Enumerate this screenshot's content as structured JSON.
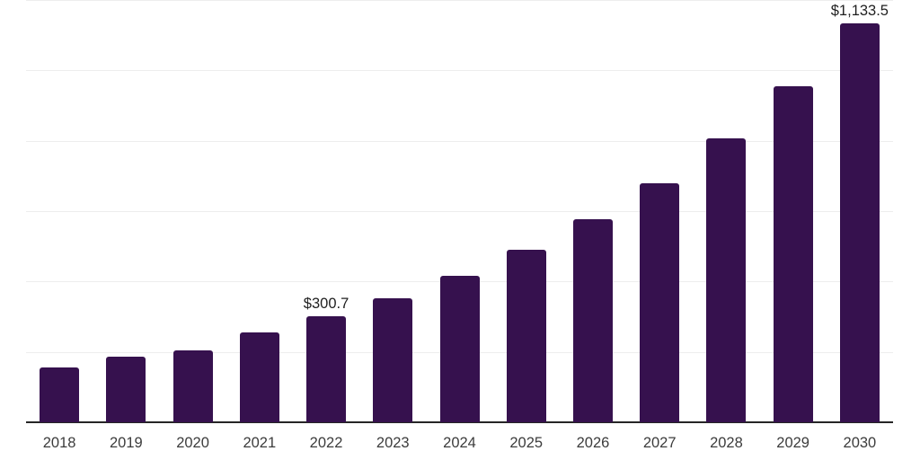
{
  "chart_data": {
    "type": "bar",
    "title": "",
    "xlabel": "",
    "ylabel": "",
    "categories": [
      "2018",
      "2019",
      "2020",
      "2021",
      "2022",
      "2023",
      "2024",
      "2025",
      "2026",
      "2027",
      "2028",
      "2029",
      "2030"
    ],
    "values": [
      156.7,
      185.9,
      203.8,
      254.9,
      300.7,
      352.9,
      415.0,
      490.0,
      577.0,
      680.0,
      807.0,
      954.5,
      1133.5
    ],
    "data_labels": [
      {
        "category": "2022",
        "text": "$300.7"
      },
      {
        "category": "2030",
        "text": "$1,133.5"
      }
    ],
    "ylim": [
      0,
      1200
    ],
    "grid_step": 200,
    "grid": true,
    "legend": "none",
    "colors": {
      "bar": "#36114e",
      "gridline": "#ededed",
      "axis_line": "#262626",
      "data_label": "#1f1f1f",
      "tick_label": "#3c3c3c"
    }
  }
}
